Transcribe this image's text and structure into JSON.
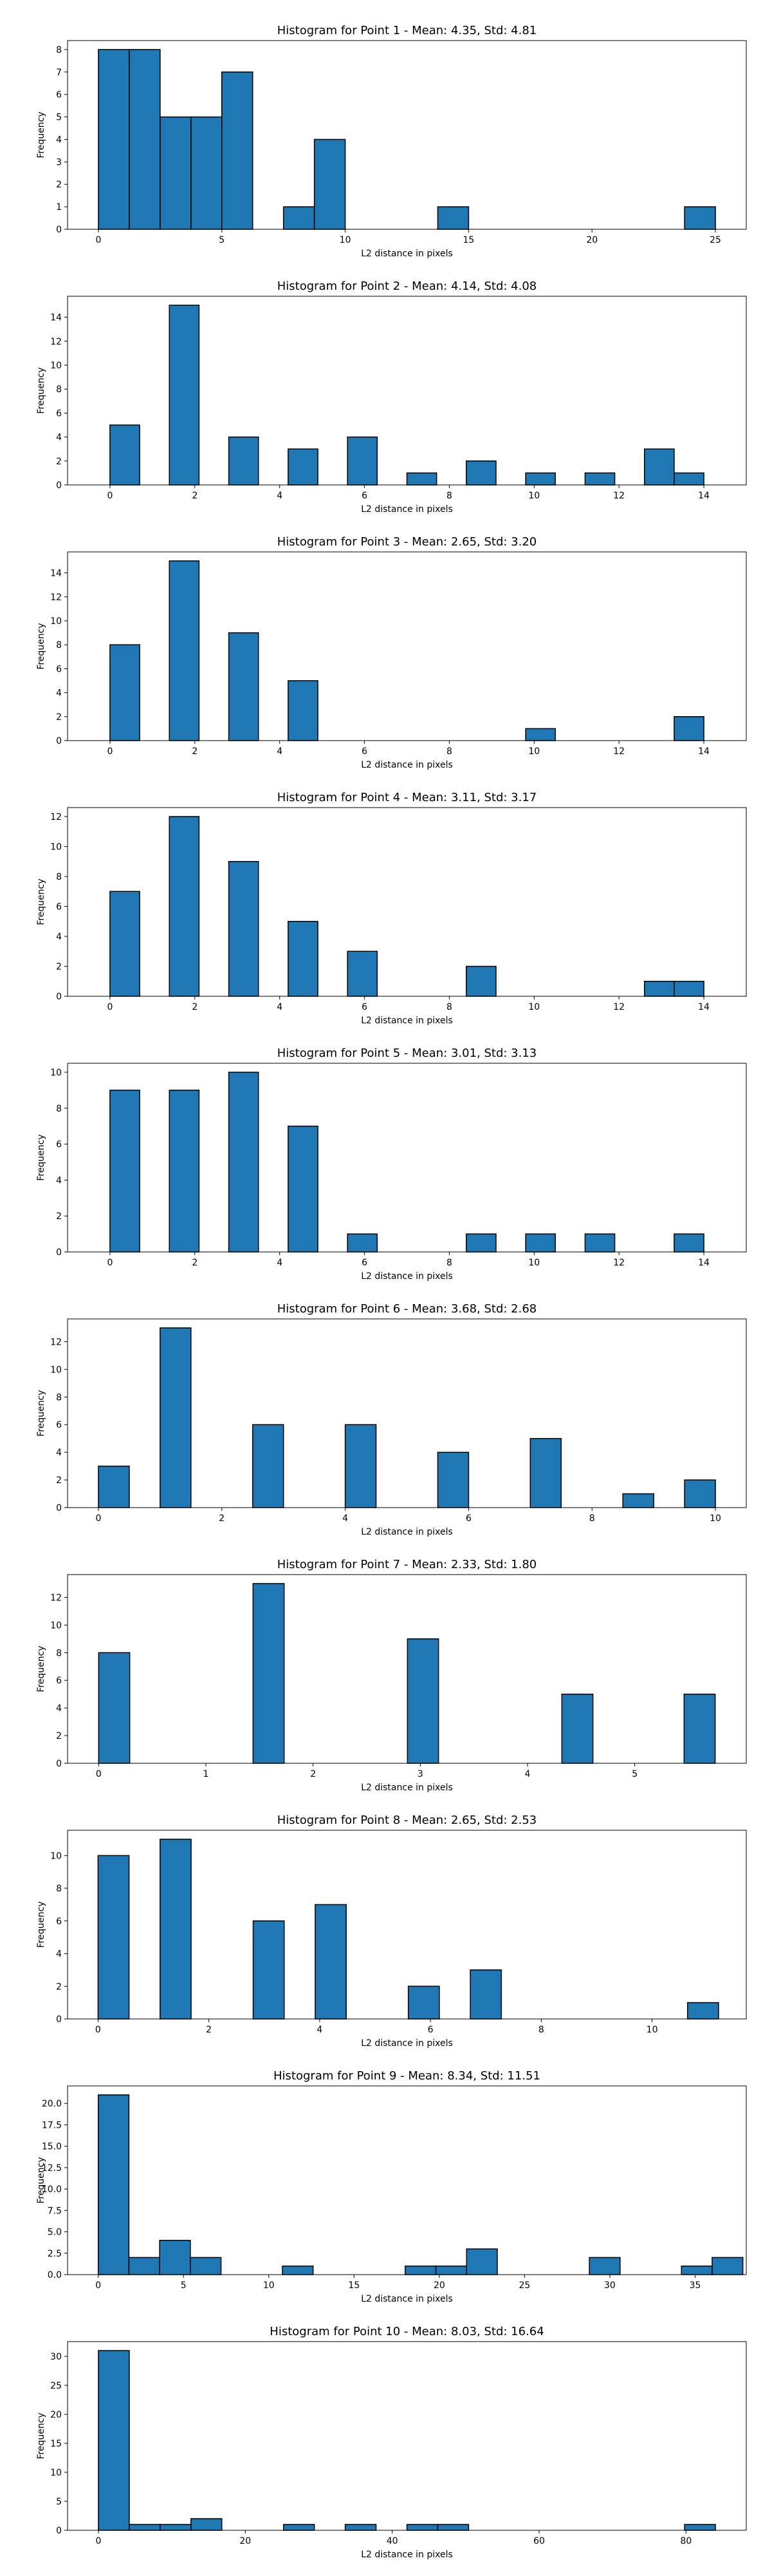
{
  "chart_data": [
    {
      "type": "bar",
      "title": "Histogram for Point 1 - Mean: 4.35, Std: 4.81",
      "xlabel": "L2 distance in pixels",
      "ylabel": "Frequency",
      "xlim": [
        -1.25,
        26.25
      ],
      "ylim": [
        0,
        8.4
      ],
      "xticks": [
        0,
        5,
        10,
        15,
        20,
        25
      ],
      "yticks": [
        0,
        1,
        2,
        3,
        4,
        5,
        6,
        7,
        8
      ],
      "ytick_labels": [
        "0",
        "1",
        "2",
        "3",
        "4",
        "5",
        "6",
        "7",
        "8"
      ],
      "bins": [
        {
          "x0": 0.0,
          "x1": 1.25,
          "count": 8
        },
        {
          "x0": 1.25,
          "x1": 2.5,
          "count": 8
        },
        {
          "x0": 2.5,
          "x1": 3.75,
          "count": 5
        },
        {
          "x0": 3.75,
          "x1": 5.0,
          "count": 5
        },
        {
          "x0": 5.0,
          "x1": 6.25,
          "count": 7
        },
        {
          "x0": 7.5,
          "x1": 8.75,
          "count": 1
        },
        {
          "x0": 8.75,
          "x1": 10.0,
          "count": 4
        },
        {
          "x0": 13.75,
          "x1": 15.0,
          "count": 1
        },
        {
          "x0": 23.75,
          "x1": 25.0,
          "count": 1
        }
      ]
    },
    {
      "type": "bar",
      "title": "Histogram for Point 2 - Mean: 4.14, Std: 4.08",
      "xlabel": "L2 distance in pixels",
      "ylabel": "Frequency",
      "xlim": [
        -1.0,
        15.0
      ],
      "ylim": [
        0,
        15.75
      ],
      "xticks": [
        0,
        2,
        4,
        6,
        8,
        10,
        12,
        14
      ],
      "yticks": [
        0,
        2,
        4,
        6,
        8,
        10,
        12,
        14
      ],
      "ytick_labels": [
        "0",
        "2",
        "4",
        "6",
        "8",
        "10",
        "12",
        "14"
      ],
      "bins": [
        {
          "x0": 0.0,
          "x1": 0.7,
          "count": 5
        },
        {
          "x0": 1.4,
          "x1": 2.1,
          "count": 15
        },
        {
          "x0": 2.8,
          "x1": 3.5,
          "count": 4
        },
        {
          "x0": 4.2,
          "x1": 4.9,
          "count": 3
        },
        {
          "x0": 5.6,
          "x1": 6.3,
          "count": 4
        },
        {
          "x0": 7.0,
          "x1": 7.7,
          "count": 1
        },
        {
          "x0": 8.4,
          "x1": 9.1,
          "count": 2
        },
        {
          "x0": 9.8,
          "x1": 10.5,
          "count": 1
        },
        {
          "x0": 11.2,
          "x1": 11.9,
          "count": 1
        },
        {
          "x0": 12.6,
          "x1": 13.3,
          "count": 3
        },
        {
          "x0": 13.3,
          "x1": 14.0,
          "count": 1
        }
      ]
    },
    {
      "type": "bar",
      "title": "Histogram for Point 3 - Mean: 2.65, Std: 3.20",
      "xlabel": "L2 distance in pixels",
      "ylabel": "Frequency",
      "xlim": [
        -1.0,
        15.0
      ],
      "ylim": [
        0,
        15.75
      ],
      "xticks": [
        0,
        2,
        4,
        6,
        8,
        10,
        12,
        14
      ],
      "yticks": [
        0,
        2,
        4,
        6,
        8,
        10,
        12,
        14
      ],
      "ytick_labels": [
        "0",
        "2",
        "4",
        "6",
        "8",
        "10",
        "12",
        "14"
      ],
      "bins": [
        {
          "x0": 0.0,
          "x1": 0.7,
          "count": 8
        },
        {
          "x0": 1.4,
          "x1": 2.1,
          "count": 15
        },
        {
          "x0": 2.8,
          "x1": 3.5,
          "count": 9
        },
        {
          "x0": 4.2,
          "x1": 4.9,
          "count": 5
        },
        {
          "x0": 9.8,
          "x1": 10.5,
          "count": 1
        },
        {
          "x0": 13.3,
          "x1": 14.0,
          "count": 2
        }
      ]
    },
    {
      "type": "bar",
      "title": "Histogram for Point 4 - Mean: 3.11, Std: 3.17",
      "xlabel": "L2 distance in pixels",
      "ylabel": "Frequency",
      "xlim": [
        -1.0,
        15.0
      ],
      "ylim": [
        0,
        12.6
      ],
      "xticks": [
        0,
        2,
        4,
        6,
        8,
        10,
        12,
        14
      ],
      "yticks": [
        0,
        2,
        4,
        6,
        8,
        10,
        12
      ],
      "ytick_labels": [
        "0",
        "2",
        "4",
        "6",
        "8",
        "10",
        "12"
      ],
      "bins": [
        {
          "x0": 0.0,
          "x1": 0.7,
          "count": 7
        },
        {
          "x0": 1.4,
          "x1": 2.1,
          "count": 12
        },
        {
          "x0": 2.8,
          "x1": 3.5,
          "count": 9
        },
        {
          "x0": 4.2,
          "x1": 4.9,
          "count": 5
        },
        {
          "x0": 5.6,
          "x1": 6.3,
          "count": 3
        },
        {
          "x0": 8.4,
          "x1": 9.1,
          "count": 2
        },
        {
          "x0": 12.6,
          "x1": 13.3,
          "count": 1
        },
        {
          "x0": 13.3,
          "x1": 14.0,
          "count": 1
        }
      ]
    },
    {
      "type": "bar",
      "title": "Histogram for Point 5 - Mean: 3.01, Std: 3.13",
      "xlabel": "L2 distance in pixels",
      "ylabel": "Frequency",
      "xlim": [
        -1.0,
        15.0
      ],
      "ylim": [
        0,
        10.5
      ],
      "xticks": [
        0,
        2,
        4,
        6,
        8,
        10,
        12,
        14
      ],
      "yticks": [
        0,
        2,
        4,
        6,
        8,
        10
      ],
      "ytick_labels": [
        "0",
        "2",
        "4",
        "6",
        "8",
        "10"
      ],
      "bins": [
        {
          "x0": 0.0,
          "x1": 0.7,
          "count": 9
        },
        {
          "x0": 1.4,
          "x1": 2.1,
          "count": 9
        },
        {
          "x0": 2.8,
          "x1": 3.5,
          "count": 10
        },
        {
          "x0": 4.2,
          "x1": 4.9,
          "count": 7
        },
        {
          "x0": 5.6,
          "x1": 6.3,
          "count": 1
        },
        {
          "x0": 8.4,
          "x1": 9.1,
          "count": 1
        },
        {
          "x0": 9.8,
          "x1": 10.5,
          "count": 1
        },
        {
          "x0": 11.2,
          "x1": 11.9,
          "count": 1
        },
        {
          "x0": 13.3,
          "x1": 14.0,
          "count": 1
        }
      ]
    },
    {
      "type": "bar",
      "title": "Histogram for Point 6 - Mean: 3.68, Std: 2.68",
      "xlabel": "L2 distance in pixels",
      "ylabel": "Frequency",
      "xlim": [
        -0.5,
        10.5
      ],
      "ylim": [
        0,
        13.65
      ],
      "xticks": [
        0,
        2,
        4,
        6,
        8,
        10
      ],
      "yticks": [
        0,
        2,
        4,
        6,
        8,
        10,
        12
      ],
      "ytick_labels": [
        "0",
        "2",
        "4",
        "6",
        "8",
        "10",
        "12"
      ],
      "bins": [
        {
          "x0": 0.0,
          "x1": 0.5,
          "count": 3
        },
        {
          "x0": 1.0,
          "x1": 1.5,
          "count": 13
        },
        {
          "x0": 2.5,
          "x1": 3.0,
          "count": 6
        },
        {
          "x0": 4.0,
          "x1": 4.5,
          "count": 6
        },
        {
          "x0": 5.5,
          "x1": 6.0,
          "count": 4
        },
        {
          "x0": 7.0,
          "x1": 7.5,
          "count": 5
        },
        {
          "x0": 8.5,
          "x1": 9.0,
          "count": 1
        },
        {
          "x0": 9.5,
          "x1": 10.0,
          "count": 2
        }
      ]
    },
    {
      "type": "bar",
      "title": "Histogram for Point 7 - Mean: 2.33, Std: 1.80",
      "xlabel": "L2 distance in pixels",
      "ylabel": "Frequency",
      "xlim": [
        -0.29,
        6.04
      ],
      "ylim": [
        0,
        13.65
      ],
      "xticks": [
        0,
        1,
        2,
        3,
        4,
        5
      ],
      "yticks": [
        0,
        2,
        4,
        6,
        8,
        10,
        12
      ],
      "ytick_labels": [
        "0",
        "2",
        "4",
        "6",
        "8",
        "10",
        "12"
      ],
      "bins": [
        {
          "x0": 0.0,
          "x1": 0.29,
          "count": 8
        },
        {
          "x0": 1.44,
          "x1": 1.73,
          "count": 13
        },
        {
          "x0": 2.88,
          "x1": 3.17,
          "count": 9
        },
        {
          "x0": 4.32,
          "x1": 4.61,
          "count": 5
        },
        {
          "x0": 5.46,
          "x1": 5.75,
          "count": 5
        }
      ]
    },
    {
      "type": "bar",
      "title": "Histogram for Point 8 - Mean: 2.65, Std: 2.53",
      "xlabel": "L2 distance in pixels",
      "ylabel": "Frequency",
      "xlim": [
        -0.55,
        11.7
      ],
      "ylim": [
        0,
        11.55
      ],
      "xticks": [
        0,
        2,
        4,
        6,
        8,
        10
      ],
      "yticks": [
        0,
        2,
        4,
        6,
        8,
        10
      ],
      "ytick_labels": [
        "0",
        "2",
        "4",
        "6",
        "8",
        "10"
      ],
      "bins": [
        {
          "x0": 0.0,
          "x1": 0.56,
          "count": 10
        },
        {
          "x0": 1.12,
          "x1": 1.68,
          "count": 11
        },
        {
          "x0": 2.8,
          "x1": 3.36,
          "count": 6
        },
        {
          "x0": 3.92,
          "x1": 4.48,
          "count": 7
        },
        {
          "x0": 5.6,
          "x1": 6.16,
          "count": 2
        },
        {
          "x0": 6.72,
          "x1": 7.28,
          "count": 3
        },
        {
          "x0": 10.64,
          "x1": 11.2,
          "count": 1
        }
      ]
    },
    {
      "type": "bar",
      "title": "Histogram for Point 9 - Mean: 8.34, Std: 11.51",
      "xlabel": "L2 distance in pixels",
      "ylabel": "Frequency",
      "xlim": [
        -1.8,
        38.0
      ],
      "ylim": [
        0,
        22.05
      ],
      "xticks": [
        0,
        5,
        10,
        15,
        20,
        25,
        30,
        35
      ],
      "yticks": [
        0,
        2.5,
        5,
        7.5,
        10,
        12.5,
        15,
        17.5,
        20
      ],
      "ytick_labels": [
        "0.0",
        "2.5",
        "5.0",
        "7.5",
        "10.0",
        "12.5",
        "15.0",
        "17.5",
        "20.0"
      ],
      "bins": [
        {
          "x0": 0.0,
          "x1": 1.8,
          "count": 21
        },
        {
          "x0": 1.8,
          "x1": 3.6,
          "count": 2
        },
        {
          "x0": 3.6,
          "x1": 5.4,
          "count": 4
        },
        {
          "x0": 5.4,
          "x1": 7.2,
          "count": 2
        },
        {
          "x0": 10.8,
          "x1": 12.6,
          "count": 1
        },
        {
          "x0": 18.0,
          "x1": 19.8,
          "count": 1
        },
        {
          "x0": 19.8,
          "x1": 21.6,
          "count": 1
        },
        {
          "x0": 21.6,
          "x1": 23.4,
          "count": 3
        },
        {
          "x0": 28.8,
          "x1": 30.6,
          "count": 2
        },
        {
          "x0": 34.2,
          "x1": 36.0,
          "count": 1
        },
        {
          "x0": 36.0,
          "x1": 37.8,
          "count": 2
        }
      ]
    },
    {
      "type": "bar",
      "title": "Histogram for Point 10 - Mean: 8.03, Std: 16.64",
      "xlabel": "L2 distance in pixels",
      "ylabel": "Frequency",
      "xlim": [
        -4.2,
        88.2
      ],
      "ylim": [
        0,
        32.55
      ],
      "xticks": [
        0,
        20,
        40,
        60,
        80
      ],
      "yticks": [
        0,
        5,
        10,
        15,
        20,
        25,
        30
      ],
      "ytick_labels": [
        "0",
        "5",
        "10",
        "15",
        "20",
        "25",
        "30"
      ],
      "bins": [
        {
          "x0": 0.0,
          "x1": 4.2,
          "count": 31
        },
        {
          "x0": 4.2,
          "x1": 8.4,
          "count": 1
        },
        {
          "x0": 8.4,
          "x1": 12.6,
          "count": 1
        },
        {
          "x0": 12.6,
          "x1": 16.8,
          "count": 2
        },
        {
          "x0": 25.2,
          "x1": 29.4,
          "count": 1
        },
        {
          "x0": 33.6,
          "x1": 37.8,
          "count": 1
        },
        {
          "x0": 42.0,
          "x1": 46.2,
          "count": 1
        },
        {
          "x0": 46.2,
          "x1": 50.4,
          "count": 1
        },
        {
          "x0": 79.8,
          "x1": 84.0,
          "count": 1
        }
      ]
    }
  ]
}
